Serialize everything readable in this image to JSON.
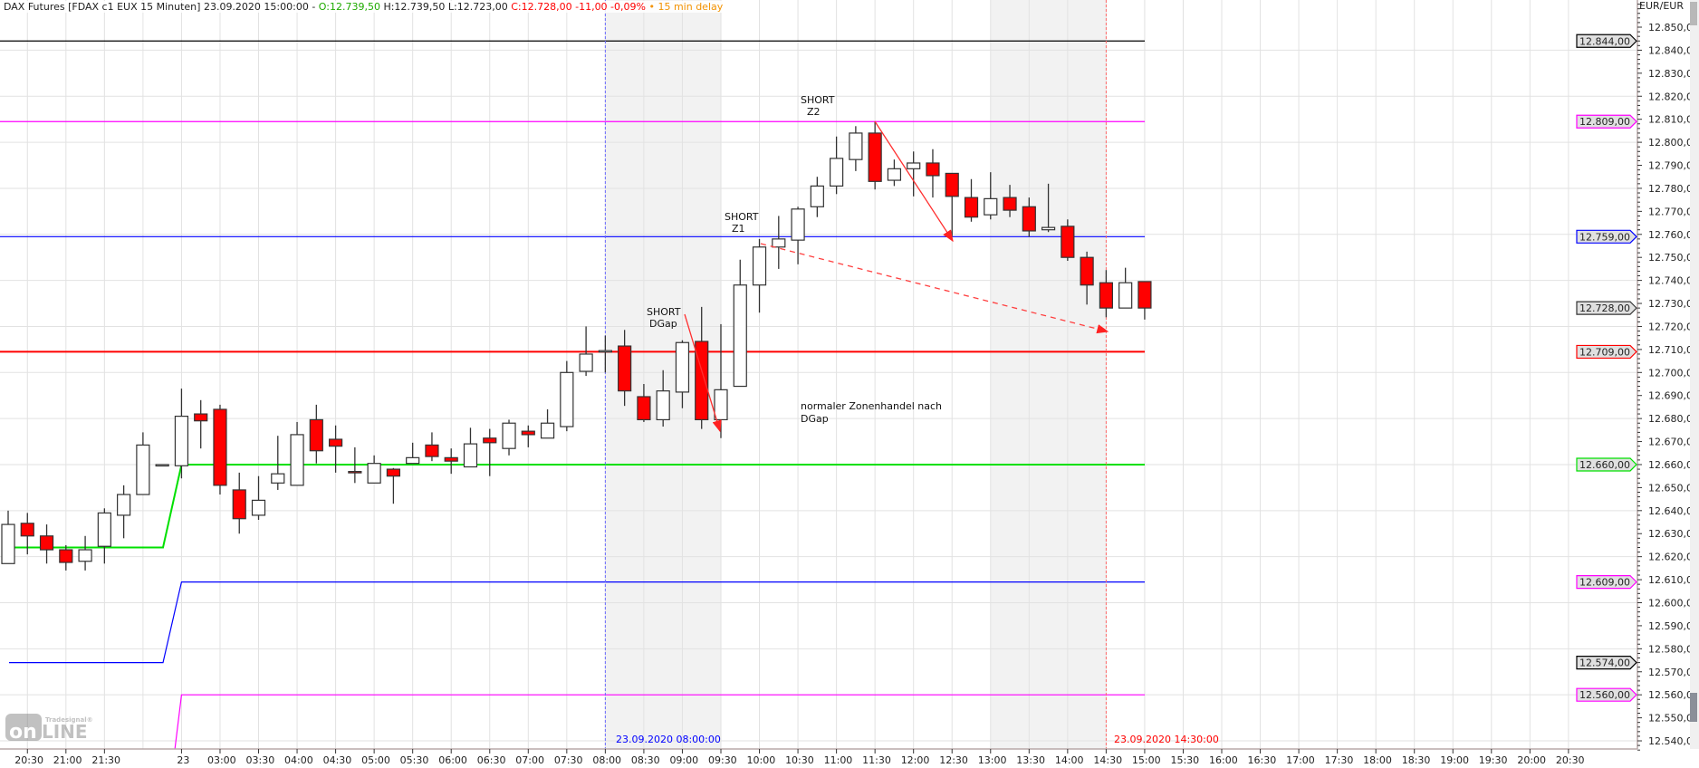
{
  "header": {
    "instrument": "DAX Futures [FDAX c1 EUX 15 Minuten] 23.09.2020 15:00:00 - ",
    "open": "O:12.739,50",
    "high_low": " H:12.739,50 L:12.723,00 ",
    "close": "C:12.728,00 -11,00 -0,09%",
    "delay": " • 15 min delay"
  },
  "price_axis": {
    "currency": "EUR/EUR",
    "labels": [
      "12.540,00",
      "12.550,00",
      "12.560,00",
      "12.570,00",
      "12.580,00",
      "12.590,00",
      "12.600,00",
      "12.610,00",
      "12.620,00",
      "12.630,00",
      "12.640,00",
      "12.650,00",
      "12.660,00",
      "12.670,00",
      "12.680,00",
      "12.690,00",
      "12.700,00",
      "12.710,00",
      "12.720,00",
      "12.730,00",
      "12.740,00",
      "12.750,00",
      "12.760,00",
      "12.770,00",
      "12.780,00",
      "12.790,00",
      "12.800,00",
      "12.810,00",
      "12.820,00",
      "12.830,00",
      "12.840,00",
      "12.850,00"
    ],
    "markers": [
      {
        "label": "12.844,00",
        "value": 12844,
        "color": "#000000"
      },
      {
        "label": "12.809,00",
        "value": 12809,
        "color": "#ff00ff"
      },
      {
        "label": "12.759,00",
        "value": 12759,
        "color": "#0000ff"
      },
      {
        "label": "12.728,00",
        "value": 12728,
        "color": "#333333"
      },
      {
        "label": "12.709,00",
        "value": 12709,
        "color": "#ff0000"
      },
      {
        "label": "12.660,00",
        "value": 12660,
        "color": "#00e000"
      },
      {
        "label": "12.609,00",
        "value": 12609,
        "color": "#ff00ff"
      },
      {
        "label": "12.574,00",
        "value": 12574,
        "color": "#000000"
      },
      {
        "label": "12.560,00",
        "value": 12560,
        "color": "#ff00ff"
      }
    ]
  },
  "time_axis": {
    "labels": [
      "20:30",
      "21:00",
      "21:30",
      "23",
      "03:00",
      "03:30",
      "04:00",
      "04:30",
      "05:00",
      "05:30",
      "06:00",
      "06:30",
      "07:00",
      "07:30",
      "08:00",
      "08:30",
      "09:00",
      "09:30",
      "10:00",
      "10:30",
      "11:00",
      "11:30",
      "12:00",
      "12:30",
      "13:00",
      "13:30",
      "14:00",
      "14:30",
      "15:00",
      "15:30",
      "16:00",
      "16:30",
      "17:00",
      "17:30",
      "18:00",
      "18:30",
      "19:00",
      "19:30",
      "20:00",
      "20:30"
    ]
  },
  "markers": {
    "start_label": "23.09.2020 08:00:00",
    "start_color": "#0000ff",
    "end_label": "23.09.2020 14:30:00",
    "end_color": "#ff0000"
  },
  "annotations": [
    {
      "line1": "SHORT",
      "line2": "Z2"
    },
    {
      "line1": "SHORT",
      "line2": "Z1"
    },
    {
      "line1": "SHORT",
      "line2": "DGap"
    },
    {
      "line1": "normaler Zonenhandel nach",
      "line2": "DGap"
    }
  ],
  "logo": "Tradesignal online",
  "chart_data": {
    "type": "candlestick",
    "bar_interval": "15 Minuten",
    "ylim": [
      12536,
      12861
    ],
    "up_color": "#ffffff",
    "down_color": "#ff0000",
    "ohlc": [
      [
        12617,
        12640,
        12617,
        12634
      ],
      [
        12634.5,
        12639,
        12621,
        12629
      ],
      [
        12629,
        12634,
        12617,
        12623
      ],
      [
        12623,
        12625,
        12614,
        12617.5
      ],
      [
        12618,
        12629,
        12614,
        12623
      ],
      [
        12624.5,
        12641,
        12617,
        12639
      ],
      [
        12638,
        12651,
        12628,
        12647
      ],
      [
        12647,
        12674,
        12647,
        12668.5
      ],
      [
        12660,
        12660,
        12660,
        12660
      ],
      [
        12659.5,
        12693,
        12654,
        12681
      ],
      [
        12682,
        12688,
        12667,
        12679
      ],
      [
        12684,
        12686,
        12647,
        12651
      ],
      [
        12649,
        12656.5,
        12630,
        12636.5
      ],
      [
        12638,
        12655,
        12636,
        12644.5
      ],
      [
        12652,
        12672.5,
        12649,
        12656
      ],
      [
        12651,
        12678.5,
        12651,
        12673
      ],
      [
        12679.5,
        12686,
        12660.5,
        12666
      ],
      [
        12671,
        12677,
        12656.5,
        12668
      ],
      [
        12657,
        12667.5,
        12652,
        12656.5
      ],
      [
        12652,
        12664,
        12652,
        12660.5
      ],
      [
        12658,
        12658.5,
        12643,
        12655
      ],
      [
        12660.5,
        12669.5,
        12660.5,
        12663
      ],
      [
        12668.5,
        12674,
        12661.5,
        12663.5
      ],
      [
        12663,
        12667,
        12656,
        12661.5
      ],
      [
        12659,
        12676,
        12659,
        12669
      ],
      [
        12671.5,
        12675.5,
        12655,
        12669.5
      ],
      [
        12667,
        12679.5,
        12664,
        12678
      ],
      [
        12674.5,
        12677,
        12667.5,
        12673
      ],
      [
        12671.5,
        12684,
        12671.5,
        12678
      ],
      [
        12676.5,
        12705,
        12674.5,
        12700
      ],
      [
        12700.5,
        12720,
        12698.5,
        12708
      ],
      [
        12709.5,
        12716,
        12700,
        12709.5
      ],
      [
        12711.5,
        12718.5,
        12685.5,
        12692
      ],
      [
        12689.5,
        12695,
        12678.5,
        12679.5
      ],
      [
        12679.5,
        12701,
        12676.5,
        12692
      ],
      [
        12691.5,
        12714,
        12684.5,
        12713
      ],
      [
        12713.5,
        12728.5,
        12675.5,
        12679.5
      ],
      [
        12679.5,
        12721,
        12671.5,
        12692.5
      ],
      [
        12694,
        12749,
        12694,
        12738
      ],
      [
        12738,
        12758,
        12726,
        12754.5
      ],
      [
        12754.5,
        12768,
        12745,
        12758
      ],
      [
        12757.5,
        12772,
        12747,
        12771
      ],
      [
        12772,
        12785,
        12767.5,
        12781
      ],
      [
        12781,
        12802.5,
        12777.5,
        12793
      ],
      [
        12792.5,
        12807,
        12787.5,
        12804
      ],
      [
        12804,
        12809,
        12779.5,
        12783
      ],
      [
        12783.5,
        12792.5,
        12781,
        12788.5
      ],
      [
        12788.5,
        12796,
        12776.5,
        12791
      ],
      [
        12791,
        12797,
        12776,
        12785.5
      ],
      [
        12786.5,
        12786.5,
        12759,
        12776.5
      ],
      [
        12776,
        12784,
        12765.5,
        12767.5
      ],
      [
        12768.5,
        12787,
        12766.5,
        12775.5
      ],
      [
        12776,
        12781.5,
        12767.5,
        12770.5
      ],
      [
        12772,
        12776,
        12759,
        12761.5
      ],
      [
        12762,
        12782,
        12761,
        12763
      ],
      [
        12763.5,
        12766.5,
        12748.5,
        12750
      ],
      [
        12750,
        12752.5,
        12729.5,
        12738
      ],
      [
        12739,
        12744.5,
        12724,
        12728
      ],
      [
        12728,
        12745.5,
        12728,
        12739
      ],
      [
        12739.5,
        12739.5,
        12723,
        12728
      ]
    ],
    "levels": [
      {
        "value": 12844,
        "color": "#000000"
      },
      {
        "value": 12809,
        "color": "#ff00ff"
      },
      {
        "value": 12759,
        "color": "#0000ff"
      },
      {
        "value": 12709,
        "color": "#ff0000"
      }
    ],
    "step_lines": [
      {
        "color": "#00e000",
        "before": 12624,
        "after": 12660
      },
      {
        "color": "#0000ff",
        "before": 12574,
        "after": 12609
      },
      {
        "color": "#ff00ff",
        "before": 12520,
        "after": 12560
      }
    ]
  }
}
